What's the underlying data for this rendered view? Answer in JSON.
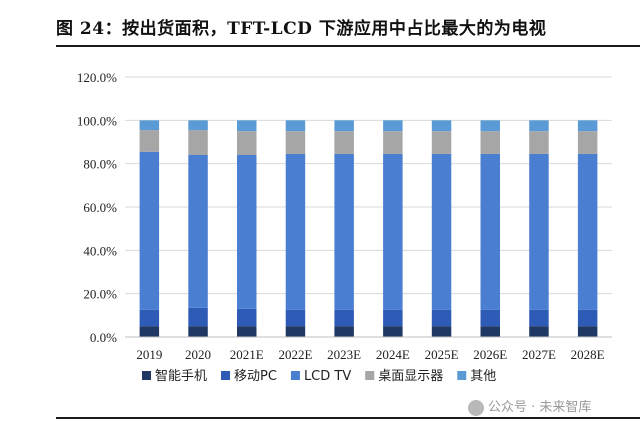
{
  "title": "图  24：按出货面积，TFT-LCD 下游应用中占比最大的为电视",
  "watermark": "公众号 · 未来智库",
  "colors": {
    "智能手机": "#1f3864",
    "移动PC": "#2e5bb5",
    "LCD TV": "#4a7ed1",
    "桌面显示器": "#a6a6a6",
    "其他": "#5b9bd5"
  },
  "chart_data": {
    "type": "bar",
    "stacked": true,
    "title": "",
    "xlabel": "",
    "ylabel": "",
    "ylim": [
      0,
      120
    ],
    "y_ticks": [
      "0.0%",
      "20.0%",
      "40.0%",
      "60.0%",
      "80.0%",
      "100.0%",
      "120.0%"
    ],
    "y_tick_values": [
      0,
      20,
      40,
      60,
      80,
      100,
      120
    ],
    "legend_position": "bottom",
    "categories": [
      "2019",
      "2020",
      "2021E",
      "2022E",
      "2023E",
      "2024E",
      "2025E",
      "2026E",
      "2027E",
      "2028E"
    ],
    "series": [
      {
        "name": "智能手机",
        "values": [
          5,
          5,
          5,
          5,
          5,
          5,
          5,
          5,
          5,
          5
        ]
      },
      {
        "name": "移动PC",
        "values": [
          7.5,
          8.5,
          8,
          7.5,
          7.5,
          7.5,
          7.5,
          7.5,
          7.5,
          7.5
        ]
      },
      {
        "name": "LCD TV",
        "values": [
          73,
          70.5,
          71,
          72,
          72,
          72,
          72,
          72,
          72,
          72
        ]
      },
      {
        "name": "桌面显示器",
        "values": [
          10,
          11.5,
          11,
          10.5,
          10.5,
          10.5,
          10.5,
          10.5,
          10.5,
          10.5
        ]
      },
      {
        "name": "其他",
        "values": [
          4.5,
          4.5,
          5,
          5,
          5,
          5,
          5,
          5,
          5,
          5
        ]
      }
    ]
  }
}
